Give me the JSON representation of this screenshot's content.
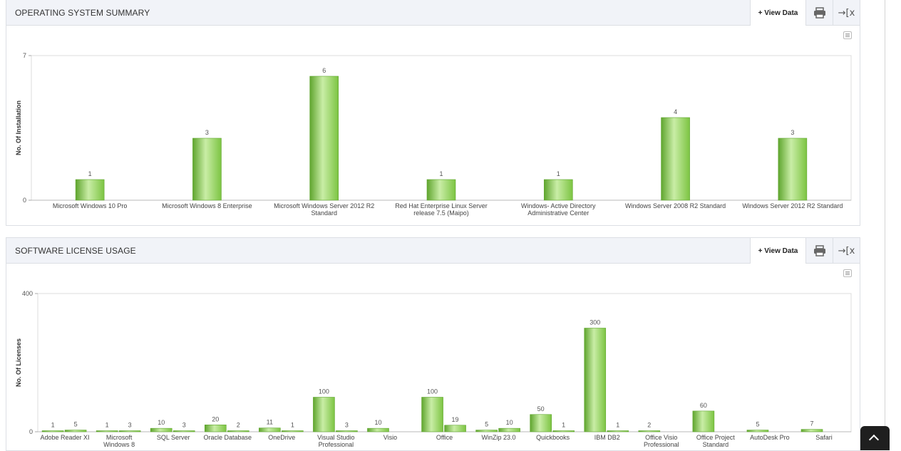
{
  "os_panel": {
    "title": "OPERATING SYSTEM SUMMARY",
    "view_data_label": "+ View Data",
    "print_icon": "printer-icon",
    "export_icon": "export-icon"
  },
  "sw_panel": {
    "title": "SOFTWARE LICENSE USAGE",
    "view_data_label": "+ View Data",
    "print_icon": "printer-icon",
    "export_icon": "export-icon"
  },
  "colors": {
    "bar": "#7cc442",
    "bar_light": "#c9eda6",
    "bar_dark": "#5fa52e"
  },
  "chart_data": [
    {
      "type": "bar",
      "title": "",
      "xlabel": "",
      "ylabel": "No. Of Installation",
      "ylim": [
        0,
        7
      ],
      "yticks": [
        0,
        7
      ],
      "grid": false,
      "categories": [
        [
          "Microsoft Windows 10 Pro"
        ],
        [
          "Microsoft Windows 8 Enterprise"
        ],
        [
          "Microsoft Windows Server 2012 R2",
          "Standard"
        ],
        [
          "Red Hat Enterprise Linux Server",
          "release 7.5 (Maipo)"
        ],
        [
          "Windows- Active Directory",
          "Administrative Center"
        ],
        [
          "Windows Server 2008 R2 Standard"
        ],
        [
          "Windows Server 2012 R2 Standard"
        ]
      ],
      "values": [
        1,
        3,
        6,
        1,
        1,
        4,
        3
      ]
    },
    {
      "type": "bar",
      "title": "",
      "xlabel": "",
      "ylabel": "No. Of Licenses",
      "ylim": [
        0,
        400
      ],
      "yticks": [
        0,
        400
      ],
      "grid": false,
      "categories": [
        [
          "Adobe Reader XI"
        ],
        [
          "Microsoft",
          "Windows 8"
        ],
        [
          "SQL Server"
        ],
        [
          "Oracle Database"
        ],
        [
          "OneDrive"
        ],
        [
          "Visual Studio",
          "Professional"
        ],
        [
          "Visio"
        ],
        [
          "Office"
        ],
        [
          "WinZip 23.0"
        ],
        [
          "Quickbooks"
        ],
        [
          "IBM DB2"
        ],
        [
          "Office Visio",
          "Professional"
        ],
        [
          "Office Project",
          "Standard"
        ],
        [
          "AutoDesk Pro"
        ],
        [
          "Safari"
        ]
      ],
      "series": [
        {
          "values": [
            1,
            1,
            10,
            20,
            11,
            100,
            10,
            100,
            5,
            50,
            300,
            2,
            60,
            5,
            7
          ]
        },
        {
          "values": [
            5,
            3,
            3,
            2,
            1,
            3,
            null,
            19,
            10,
            1,
            1,
            null,
            null,
            null,
            null
          ]
        }
      ]
    }
  ]
}
